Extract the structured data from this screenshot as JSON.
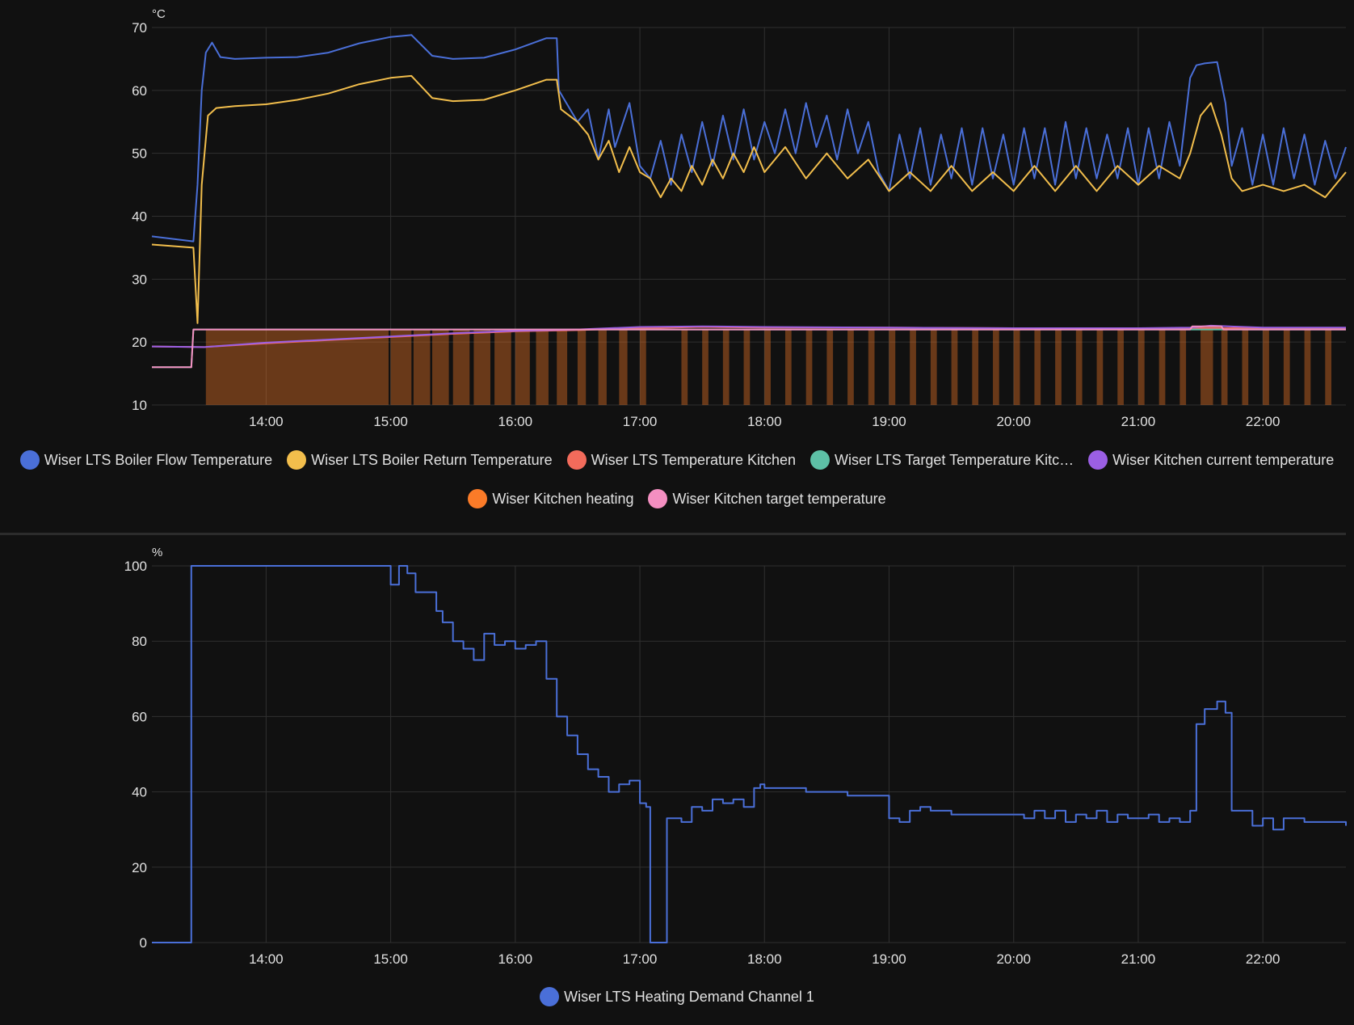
{
  "charts": {
    "temperature": {
      "unit": "°C"
    },
    "demand": {
      "unit": "%"
    }
  },
  "chart_data": [
    {
      "type": "line",
      "title": "",
      "ylabel": "°C",
      "ylim": [
        10,
        70
      ],
      "yticks": [
        10,
        20,
        30,
        40,
        50,
        60,
        70
      ],
      "xlim": [
        "13:05",
        "22:40"
      ],
      "xticks": [
        "14:00",
        "15:00",
        "16:00",
        "17:00",
        "18:00",
        "19:00",
        "20:00",
        "21:00",
        "22:00"
      ],
      "grid": true,
      "legend_position": "bottom",
      "series": [
        {
          "name": "Wiser LTS Boiler Flow Temperature",
          "color": "#4a6fd8",
          "x": [
            "13:05",
            "13:25",
            "13:27",
            "13:29",
            "13:31",
            "13:34",
            "13:38",
            "13:45",
            "14:00",
            "14:15",
            "14:30",
            "14:45",
            "15:00",
            "15:10",
            "15:20",
            "15:30",
            "15:45",
            "16:00",
            "16:15",
            "16:20",
            "16:21",
            "16:30",
            "16:35",
            "16:40",
            "16:45",
            "16:48",
            "16:55",
            "17:00",
            "17:05",
            "17:10",
            "17:15",
            "17:20",
            "17:25",
            "17:30",
            "17:35",
            "17:40",
            "17:45",
            "17:50",
            "17:55",
            "18:00",
            "18:05",
            "18:10",
            "18:15",
            "18:20",
            "18:25",
            "18:30",
            "18:35",
            "18:40",
            "18:45",
            "18:50",
            "18:55",
            "19:00",
            "19:05",
            "19:10",
            "19:15",
            "19:20",
            "19:25",
            "19:30",
            "19:35",
            "19:40",
            "19:45",
            "19:50",
            "19:55",
            "20:00",
            "20:05",
            "20:10",
            "20:15",
            "20:20",
            "20:25",
            "20:30",
            "20:35",
            "20:40",
            "20:45",
            "20:50",
            "20:55",
            "21:00",
            "21:05",
            "21:10",
            "21:15",
            "21:20",
            "21:25",
            "21:28",
            "21:32",
            "21:38",
            "21:42",
            "21:45",
            "21:50",
            "21:55",
            "22:00",
            "22:05",
            "22:10",
            "22:15",
            "22:20",
            "22:25",
            "22:30",
            "22:35",
            "22:40"
          ],
          "values": [
            36.8,
            36,
            45,
            60,
            66,
            67.6,
            65.3,
            65,
            65.2,
            65.3,
            66,
            67.5,
            68.5,
            68.8,
            65.5,
            65,
            65.2,
            66.5,
            68.3,
            68.3,
            60,
            55,
            57,
            49,
            57,
            51,
            58,
            48,
            46,
            52,
            45,
            53,
            47,
            55,
            48,
            56,
            49,
            57,
            49,
            55,
            50,
            57,
            50,
            58,
            51,
            56,
            49,
            57,
            50,
            55,
            47,
            44,
            53,
            46,
            54,
            45,
            53,
            46,
            54,
            45,
            54,
            46,
            53,
            45,
            54,
            46,
            54,
            45,
            55,
            46,
            54,
            46,
            53,
            46,
            54,
            45,
            54,
            46,
            55,
            48,
            62,
            64,
            64.3,
            64.5,
            58,
            48,
            54,
            45,
            53,
            45,
            54,
            46,
            53,
            45,
            52,
            46,
            51
          ]
        },
        {
          "name": "Wiser LTS Boiler Return Temperature",
          "color": "#f2be4c",
          "x": [
            "13:05",
            "13:25",
            "13:27",
            "13:29",
            "13:32",
            "13:36",
            "13:45",
            "14:00",
            "14:15",
            "14:30",
            "14:45",
            "15:00",
            "15:10",
            "15:20",
            "15:30",
            "15:45",
            "16:00",
            "16:15",
            "16:20",
            "16:22",
            "16:30",
            "16:35",
            "16:40",
            "16:45",
            "16:50",
            "16:55",
            "17:00",
            "17:05",
            "17:10",
            "17:15",
            "17:20",
            "17:25",
            "17:30",
            "17:35",
            "17:40",
            "17:45",
            "17:50",
            "17:55",
            "18:00",
            "18:10",
            "18:20",
            "18:30",
            "18:40",
            "18:50",
            "19:00",
            "19:10",
            "19:20",
            "19:30",
            "19:40",
            "19:50",
            "20:00",
            "20:10",
            "20:20",
            "20:30",
            "20:40",
            "20:50",
            "21:00",
            "21:10",
            "21:20",
            "21:25",
            "21:30",
            "21:35",
            "21:40",
            "21:45",
            "21:50",
            "22:00",
            "22:10",
            "22:20",
            "22:30",
            "22:40"
          ],
          "values": [
            35.5,
            35,
            23,
            45,
            56,
            57.2,
            57.5,
            57.8,
            58.5,
            59.5,
            61,
            62,
            62.3,
            58.8,
            58.3,
            58.5,
            60,
            61.7,
            61.7,
            57,
            55,
            53,
            49,
            52,
            47,
            51,
            47,
            46,
            43,
            46,
            44,
            48,
            45,
            49,
            46,
            50,
            47,
            51,
            47,
            51,
            46,
            50,
            46,
            49,
            44,
            47,
            44,
            48,
            44,
            47,
            44,
            48,
            44,
            48,
            44,
            48,
            45,
            48,
            46,
            50,
            56,
            58,
            53,
            46,
            44,
            45,
            44,
            45,
            43,
            47
          ]
        },
        {
          "name": "Wiser LTS Temperature Kitchen",
          "color": "#f26b5b",
          "x": [
            "13:05",
            "13:30",
            "14:00",
            "14:30",
            "15:00",
            "15:30",
            "16:00",
            "16:30",
            "17:00",
            "17:30",
            "18:00",
            "19:00",
            "20:00",
            "21:00",
            "22:00",
            "22:40"
          ],
          "values": [
            19.3,
            19.2,
            19.8,
            20.3,
            20.8,
            21.3,
            21.7,
            21.9,
            22.2,
            22.4,
            22.3,
            22.3,
            22.2,
            22.2,
            22.2,
            22.2
          ]
        },
        {
          "name": "Wiser LTS Target Temperature Kitc…",
          "color": "#5dc0a6",
          "x": [
            "13:05",
            "13:24",
            "13:25",
            "22:40"
          ],
          "values": [
            16,
            16,
            22,
            22
          ]
        },
        {
          "name": "Wiser Kitchen current temperature",
          "color": "#9b5fe4",
          "x": [
            "13:05",
            "13:30",
            "14:00",
            "14:30",
            "15:00",
            "15:30",
            "16:00",
            "16:30",
            "17:00",
            "17:30",
            "18:00",
            "19:00",
            "20:00",
            "21:00",
            "21:25",
            "21:35",
            "22:00",
            "22:40"
          ],
          "values": [
            19.3,
            19.2,
            19.9,
            20.4,
            20.9,
            21.4,
            21.8,
            22.0,
            22.4,
            22.5,
            22.4,
            22.3,
            22.2,
            22.2,
            22.3,
            22.6,
            22.3,
            22.3
          ]
        },
        {
          "name": "Wiser Kitchen heating",
          "color": "#fb7b28",
          "type": "bar-state",
          "on_intervals": [
            [
              "13:31",
              "14:59"
            ],
            [
              "15:00",
              "15:10"
            ],
            [
              "15:11",
              "15:19"
            ],
            [
              "15:20",
              "15:28"
            ],
            [
              "15:30",
              "15:38"
            ],
            [
              "15:40",
              "15:48"
            ],
            [
              "15:50",
              "15:58"
            ],
            [
              "16:00",
              "16:07"
            ],
            [
              "16:10",
              "16:16"
            ],
            [
              "16:20",
              "16:25"
            ],
            [
              "16:30",
              "16:34"
            ],
            [
              "16:40",
              "16:44"
            ],
            [
              "16:50",
              "16:54"
            ],
            [
              "17:00",
              "17:03"
            ],
            [
              "17:20",
              "17:23"
            ],
            [
              "17:30",
              "17:33"
            ],
            [
              "17:40",
              "17:43"
            ],
            [
              "17:50",
              "17:53"
            ],
            [
              "18:00",
              "18:03"
            ],
            [
              "18:10",
              "18:13"
            ],
            [
              "18:20",
              "18:23"
            ],
            [
              "18:30",
              "18:33"
            ],
            [
              "18:40",
              "18:43"
            ],
            [
              "18:50",
              "18:53"
            ],
            [
              "19:00",
              "19:03"
            ],
            [
              "19:10",
              "19:13"
            ],
            [
              "19:20",
              "19:23"
            ],
            [
              "19:30",
              "19:33"
            ],
            [
              "19:40",
              "19:43"
            ],
            [
              "19:50",
              "19:53"
            ],
            [
              "20:00",
              "20:03"
            ],
            [
              "20:10",
              "20:13"
            ],
            [
              "20:20",
              "20:23"
            ],
            [
              "20:30",
              "20:33"
            ],
            [
              "20:40",
              "20:43"
            ],
            [
              "20:50",
              "20:53"
            ],
            [
              "21:00",
              "21:03"
            ],
            [
              "21:10",
              "21:13"
            ],
            [
              "21:20",
              "21:23"
            ],
            [
              "21:30",
              "21:36"
            ],
            [
              "21:40",
              "21:43"
            ],
            [
              "21:50",
              "21:53"
            ],
            [
              "22:00",
              "22:03"
            ],
            [
              "22:10",
              "22:13"
            ],
            [
              "22:20",
              "22:23"
            ],
            [
              "22:30",
              "22:33"
            ]
          ]
        },
        {
          "name": "Wiser Kitchen target temperature",
          "color": "#f48fc1",
          "x": [
            "13:05",
            "13:24",
            "13:25",
            "21:25",
            "21:26",
            "21:40",
            "21:41",
            "22:40"
          ],
          "values": [
            16,
            16,
            22,
            22,
            22.5,
            22.5,
            22,
            22
          ]
        }
      ]
    },
    {
      "type": "line",
      "title": "",
      "ylabel": "%",
      "ylim": [
        0,
        100
      ],
      "yticks": [
        0,
        20,
        40,
        60,
        80,
        100
      ],
      "xlim": [
        "13:05",
        "22:40"
      ],
      "xticks": [
        "14:00",
        "15:00",
        "16:00",
        "17:00",
        "18:00",
        "19:00",
        "20:00",
        "21:00",
        "22:00"
      ],
      "grid": true,
      "legend_position": "bottom",
      "series": [
        {
          "name": "Wiser LTS Heating Demand Channel 1",
          "color": "#4a6fd8",
          "step": true,
          "x": [
            "13:05",
            "13:23",
            "13:24",
            "14:58",
            "15:00",
            "15:04",
            "15:08",
            "15:12",
            "15:22",
            "15:25",
            "15:30",
            "15:35",
            "15:40",
            "15:45",
            "15:50",
            "15:55",
            "16:00",
            "16:05",
            "16:10",
            "16:15",
            "16:20",
            "16:25",
            "16:30",
            "16:35",
            "16:40",
            "16:45",
            "16:50",
            "16:55",
            "17:00",
            "17:03",
            "17:05",
            "17:06",
            "17:13",
            "17:14",
            "17:20",
            "17:25",
            "17:30",
            "17:35",
            "17:40",
            "17:45",
            "17:50",
            "17:55",
            "17:58",
            "18:00",
            "18:10",
            "18:20",
            "18:30",
            "18:40",
            "18:50",
            "19:00",
            "19:05",
            "19:10",
            "19:15",
            "19:20",
            "19:25",
            "19:30",
            "19:40",
            "19:50",
            "20:00",
            "20:05",
            "20:10",
            "20:15",
            "20:20",
            "20:25",
            "20:30",
            "20:35",
            "20:40",
            "20:45",
            "20:50",
            "20:55",
            "21:00",
            "21:05",
            "21:10",
            "21:15",
            "21:20",
            "21:25",
            "21:28",
            "21:32",
            "21:38",
            "21:42",
            "21:45",
            "21:50",
            "21:55",
            "22:00",
            "22:05",
            "22:10",
            "22:20",
            "22:30",
            "22:40"
          ],
          "values": [
            0,
            0,
            100,
            100,
            95,
            100,
            98,
            93,
            88,
            85,
            80,
            78,
            75,
            82,
            79,
            80,
            78,
            79,
            80,
            70,
            60,
            55,
            50,
            46,
            44,
            40,
            42,
            43,
            37,
            36,
            0,
            0,
            33,
            33,
            32,
            36,
            35,
            38,
            37,
            38,
            36,
            41,
            42,
            41,
            41,
            40,
            40,
            39,
            39,
            33,
            32,
            35,
            36,
            35,
            35,
            34,
            34,
            34,
            34,
            33,
            35,
            33,
            35,
            32,
            34,
            33,
            35,
            32,
            34,
            33,
            33,
            34,
            32,
            33,
            32,
            35,
            58,
            62,
            64,
            61,
            35,
            35,
            31,
            33,
            30,
            33,
            32,
            32,
            31
          ]
        }
      ]
    }
  ],
  "legends": {
    "temperature": [
      {
        "label": "Wiser LTS Boiler Flow Temperature",
        "color": "#4a6fd8"
      },
      {
        "label": "Wiser LTS Boiler Return Temperature",
        "color": "#f2be4c"
      },
      {
        "label": "Wiser LTS Temperature Kitchen",
        "color": "#f26b5b"
      },
      {
        "label": "Wiser LTS Target Temperature Kitc…",
        "color": "#5dc0a6"
      },
      {
        "label": "Wiser Kitchen current temperature",
        "color": "#9b5fe4"
      },
      {
        "label": "Wiser Kitchen heating",
        "color": "#fb7b28"
      },
      {
        "label": "Wiser Kitchen target temperature",
        "color": "#f48fc1"
      }
    ],
    "demand": [
      {
        "label": "Wiser LTS Heating Demand Channel 1",
        "color": "#4a6fd8"
      }
    ]
  }
}
